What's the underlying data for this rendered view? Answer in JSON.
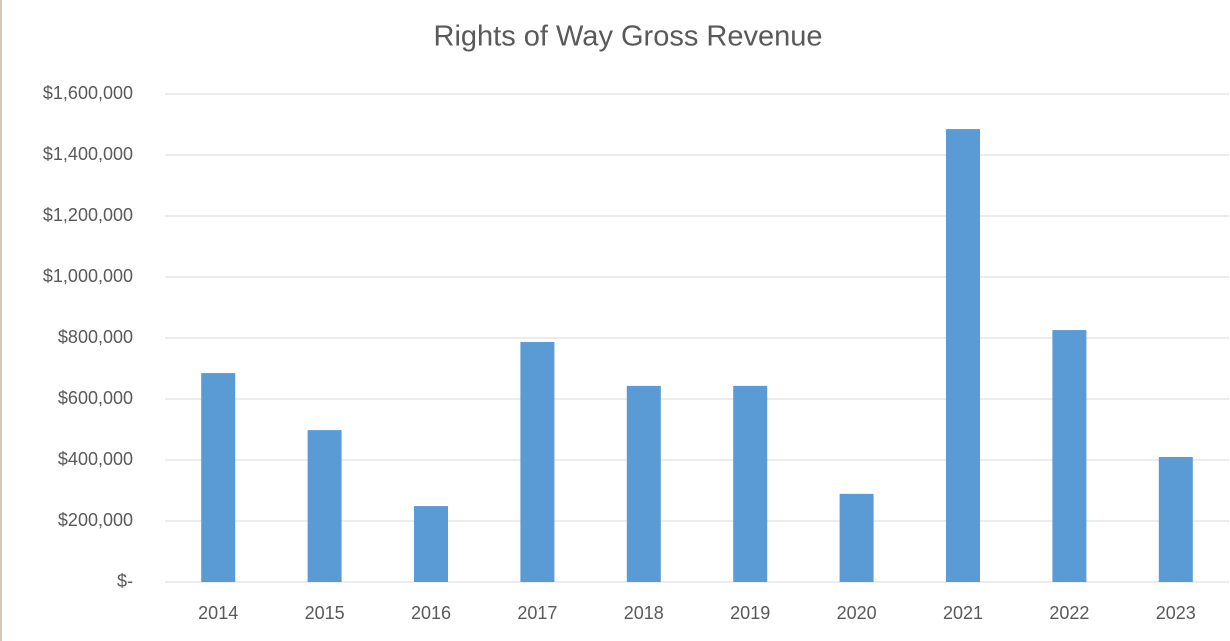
{
  "chart_data": {
    "type": "bar",
    "title": "Rights of Way Gross Revenue",
    "categories": [
      "2014",
      "2015",
      "2016",
      "2017",
      "2018",
      "2019",
      "2020",
      "2021",
      "2022",
      "2023"
    ],
    "values": [
      685000,
      498000,
      249000,
      787000,
      643000,
      643000,
      289000,
      1485000,
      826000,
      410000
    ],
    "color": "#5b9bd5",
    "ylim": [
      0,
      1600000
    ],
    "yticks": [
      {
        "value": 0,
        "label": "$-"
      },
      {
        "value": 200000,
        "label": "$200,000"
      },
      {
        "value": 400000,
        "label": "$400,000"
      },
      {
        "value": 600000,
        "label": "$600,000"
      },
      {
        "value": 800000,
        "label": "$800,000"
      },
      {
        "value": 1000000,
        "label": "$1,000,000"
      },
      {
        "value": 1200000,
        "label": "$1,200,000"
      },
      {
        "value": 1400000,
        "label": "$1,400,000"
      },
      {
        "value": 1600000,
        "label": "$1,600,000"
      }
    ],
    "grid": true
  }
}
